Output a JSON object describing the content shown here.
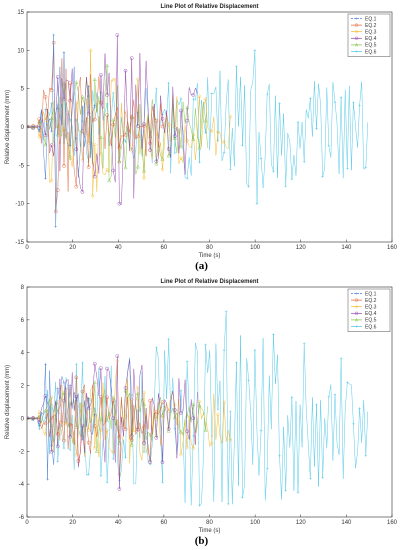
{
  "panel_labels": [
    "(a)",
    "(b)"
  ],
  "series_colors": [
    "#4a7fd4",
    "#e15d2a",
    "#f2b41c",
    "#8e3fa8",
    "#7dc142",
    "#46c4e6"
  ],
  "series_markers": [
    "plus",
    "circle",
    "diamond",
    "circle",
    "triangle",
    "plus"
  ],
  "chart_data": [
    {
      "type": "line",
      "title": "Line Plot of Relative Displacement",
      "xlabel": "Time (s)",
      "ylabel": "Relative displacement (mm)",
      "xlim": [
        0,
        160
      ],
      "ylim": [
        -15,
        15
      ],
      "xticks": [
        0,
        20,
        40,
        60,
        80,
        100,
        120,
        140,
        160
      ],
      "yticks": [
        -15,
        -10,
        -5,
        0,
        5,
        10,
        15
      ],
      "legend_position": "top-right",
      "series": [
        {
          "name": "EQ.1",
          "duration": 30,
          "peak_time": 12,
          "peak_max": 12,
          "peak_min": -13
        },
        {
          "name": "EQ.2",
          "duration": 60,
          "peak_time": 12,
          "peak_max": 11,
          "peak_min": -11
        },
        {
          "name": "EQ.3",
          "duration": 90,
          "peak_time": 28,
          "peak_max": 10,
          "peak_min": -9
        },
        {
          "name": "EQ.4",
          "duration": 75,
          "peak_time": 40,
          "peak_max": 12,
          "peak_min": -10
        },
        {
          "name": "EQ.5",
          "duration": 80,
          "peak_time": 35,
          "peak_max": 8,
          "peak_min": -7
        },
        {
          "name": "EQ.6",
          "duration": 150,
          "peak_time": 100,
          "peak_max": 10,
          "peak_min": -10
        }
      ]
    },
    {
      "type": "line",
      "title": "Line Plot of Relative Displacement",
      "xlabel": "Time (s)",
      "ylabel": "Relative displacement (mm)",
      "xlim": [
        0,
        160
      ],
      "ylim": [
        -6,
        8
      ],
      "xticks": [
        0,
        20,
        40,
        60,
        80,
        100,
        120,
        140,
        160
      ],
      "yticks": [
        -6,
        -4,
        -2,
        0,
        2,
        4,
        6,
        8
      ],
      "legend_position": "top-right",
      "series": [
        {
          "name": "EQ.1",
          "duration": 30,
          "peak_time": 8,
          "peak_max": 3.3,
          "peak_min": -3.7
        },
        {
          "name": "EQ.2",
          "duration": 60,
          "peak_time": 22,
          "peak_max": 2.5,
          "peak_min": -2.6
        },
        {
          "name": "EQ.3",
          "duration": 90,
          "peak_time": 40,
          "peak_max": 3.5,
          "peak_min": -3.4
        },
        {
          "name": "EQ.4",
          "duration": 75,
          "peak_time": 40,
          "peak_max": 3.8,
          "peak_min": -4.3
        },
        {
          "name": "EQ.5",
          "duration": 80,
          "peak_time": 30,
          "peak_max": 2.2,
          "peak_min": -2.0
        },
        {
          "name": "EQ.6",
          "duration": 150,
          "peak_time": 87,
          "peak_max": 6.5,
          "peak_min": -5.2
        }
      ]
    }
  ]
}
